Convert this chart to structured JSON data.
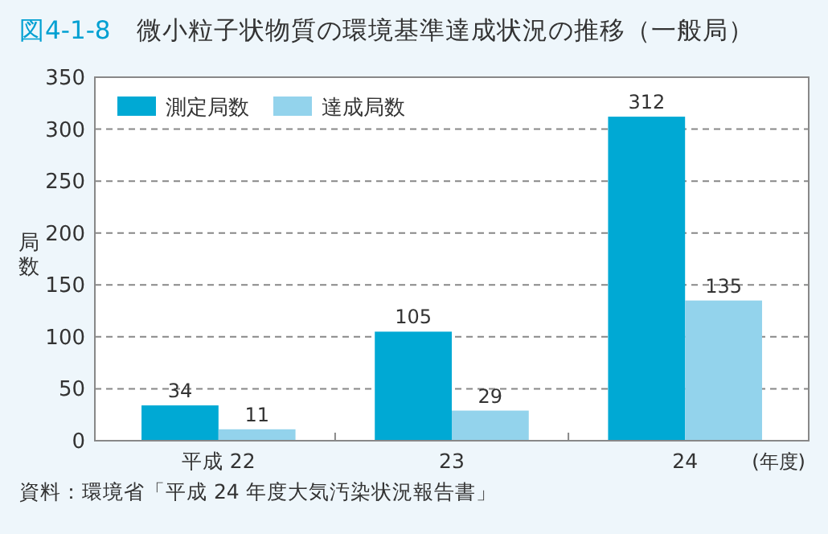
{
  "chart_data": {
    "type": "bar",
    "title": "図4-1-8　微小粒子状物質の環境基準達成状況の推移（一般局）",
    "ylabel": "局数",
    "xlabel": "(年度)",
    "annotations": [
      "資料：環境省「平成 24 年度大気汚染状況報告書」"
    ],
    "categories": [
      "平成 22",
      "23",
      "24"
    ],
    "series": [
      {
        "name": "測定局数",
        "color": "#00a9d4",
        "values": [
          34,
          105,
          312
        ]
      },
      {
        "name": "達成局数",
        "color": "#93d3ec",
        "values": [
          11,
          29,
          135
        ]
      }
    ],
    "ylim": [
      0,
      350
    ],
    "yticks": [
      0,
      50,
      100,
      150,
      200,
      250,
      300,
      350
    ],
    "grid": "y",
    "legend": "top left",
    "data_labels": true
  }
}
